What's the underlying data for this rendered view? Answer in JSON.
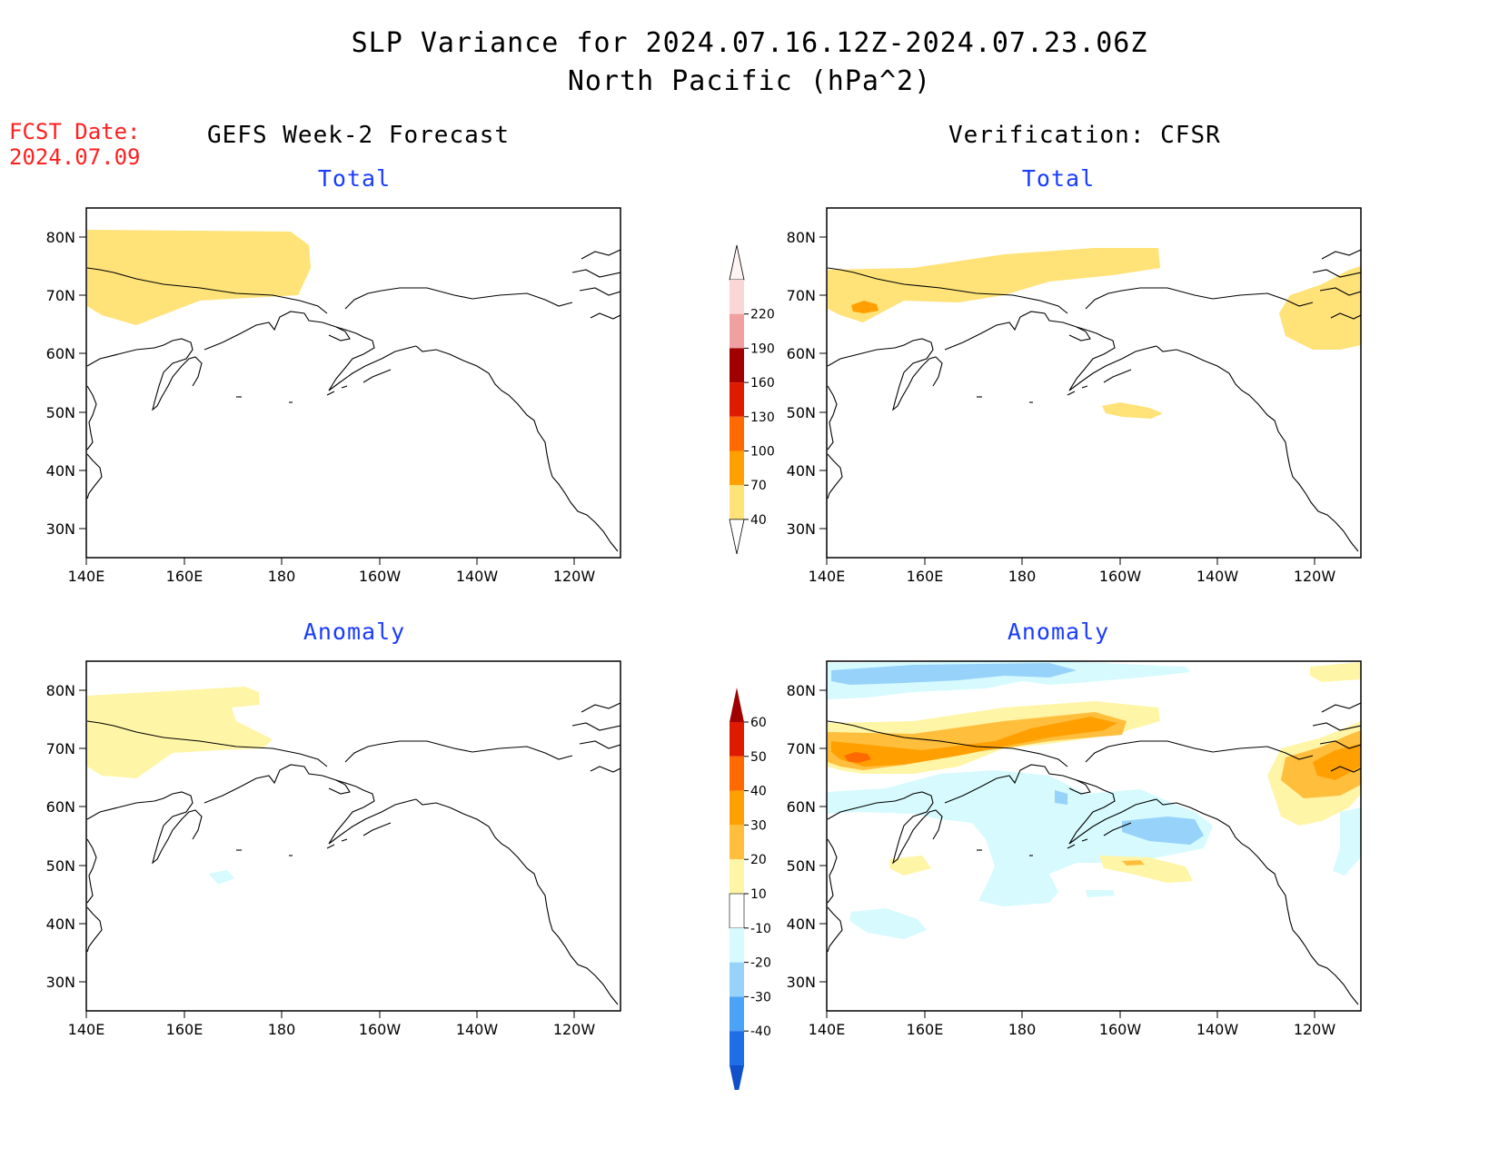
{
  "header": {
    "title_line1": "SLP Variance for 2024.07.16.12Z-2024.07.23.06Z",
    "title_line2": "North Pacific (hPa^2)",
    "fcst_date_label": "FCST Date:",
    "fcst_date_value": "2024.07.09",
    "left_column_title": "GEFS Week-2 Forecast",
    "right_column_title": "Verification: CFSR"
  },
  "panels": {
    "forecast_total": {
      "label": "Total"
    },
    "verification_total": {
      "label": "Total"
    },
    "forecast_anomaly": {
      "label": "Anomaly"
    },
    "verification_anomaly": {
      "label": "Anomaly"
    }
  },
  "axes": {
    "x_ticks": [
      "140E",
      "160E",
      "180",
      "160W",
      "140W",
      "120W"
    ],
    "y_ticks": [
      "80N",
      "70N",
      "60N",
      "50N",
      "40N",
      "30N"
    ]
  },
  "total_colorbar": {
    "levels": [
      "220",
      "190",
      "160",
      "130",
      "100",
      "70",
      "40"
    ],
    "colors": [
      "#fbd6d6",
      "#f0a0a0",
      "#a00000",
      "#e01a00",
      "#ff6a00",
      "#ffa000",
      "#ffe278"
    ]
  },
  "anomaly_colorbar": {
    "levels": [
      "60",
      "50",
      "40",
      "30",
      "20",
      "10",
      "-10",
      "-20",
      "-30",
      "-40"
    ],
    "colors": [
      "#a00000",
      "#e01a00",
      "#ff6a00",
      "#ffa000",
      "#ffbe3c",
      "#fff5a6",
      "#ffffff",
      "#d6fafe",
      "#96d2fa",
      "#4ba3f5",
      "#1e6ee6",
      "#1050c8"
    ]
  },
  "fill_colors": {
    "total_40_70": "#ffe278",
    "total_70_100": "#ffa000",
    "anom_10_20": "#fff5a6",
    "anom_20_30": "#ffbe3c",
    "anom_30_40": "#ffa000",
    "anom_40_50": "#ff6a00",
    "anom_m10_m20": "#d6fafe",
    "anom_m20_m30": "#96d2fa"
  }
}
